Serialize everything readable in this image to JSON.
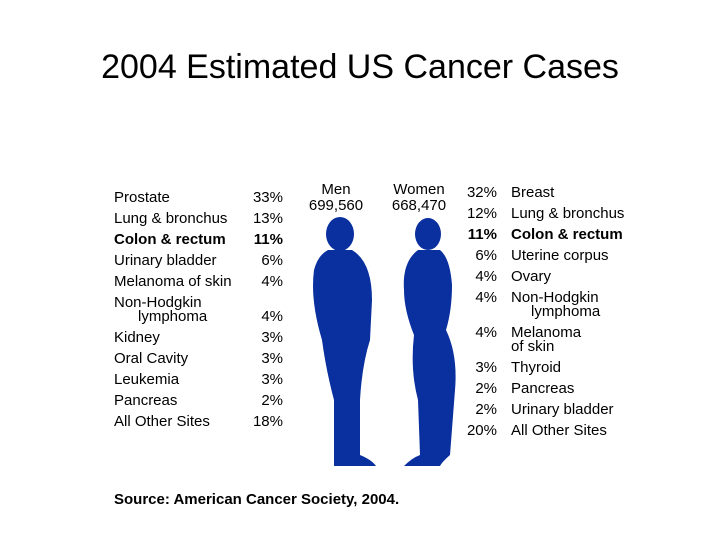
{
  "title": "2004 Estimated US Cancer Cases",
  "men": {
    "label": "Men",
    "count": "699,560",
    "rows": [
      {
        "lines": [
          "Prostate"
        ],
        "percent": "33%"
      },
      {
        "lines": [
          "Lung & bronchus"
        ],
        "percent": "13%"
      },
      {
        "lines": [
          "Colon & rectum"
        ],
        "percent": "11%",
        "bold": true
      },
      {
        "lines": [
          "Urinary bladder"
        ],
        "percent": "6%"
      },
      {
        "lines": [
          "Melanoma of skin"
        ],
        "percent": "4%"
      },
      {
        "lines": [
          "Non-Hodgkin",
          "lymphoma"
        ],
        "percent": "4%"
      },
      {
        "lines": [
          "Kidney"
        ],
        "percent": "3%"
      },
      {
        "lines": [
          "Oral Cavity"
        ],
        "percent": "3%"
      },
      {
        "lines": [
          "Leukemia"
        ],
        "percent": "3%"
      },
      {
        "lines": [
          "Pancreas"
        ],
        "percent": "2%"
      },
      {
        "lines": [
          "All Other Sites"
        ],
        "percent": "18%"
      }
    ]
  },
  "women": {
    "label": "Women",
    "count": "668,470",
    "rows": [
      {
        "lines": [
          "Breast"
        ],
        "percent": "32%"
      },
      {
        "lines": [
          "Lung & bronchus"
        ],
        "percent": "12%"
      },
      {
        "lines": [
          "Colon & rectum"
        ],
        "percent": "11%",
        "bold": true
      },
      {
        "lines": [
          "Uterine corpus"
        ],
        "percent": "6%"
      },
      {
        "lines": [
          "Ovary"
        ],
        "percent": "4%"
      },
      {
        "lines": [
          "Non-Hodgkin",
          "lymphoma"
        ],
        "percent": "4%"
      },
      {
        "lines": [
          "Melanoma",
          "of skin"
        ],
        "percent": "4%"
      },
      {
        "lines": [
          "Thyroid"
        ],
        "percent": "3%"
      },
      {
        "lines": [
          "Pancreas"
        ],
        "percent": "2%"
      },
      {
        "lines": [
          "Urinary bladder"
        ],
        "percent": "2%"
      },
      {
        "lines": [
          "All Other Sites"
        ],
        "percent": "20%"
      }
    ]
  },
  "source": "Source: American Cancer Society, 2004."
}
